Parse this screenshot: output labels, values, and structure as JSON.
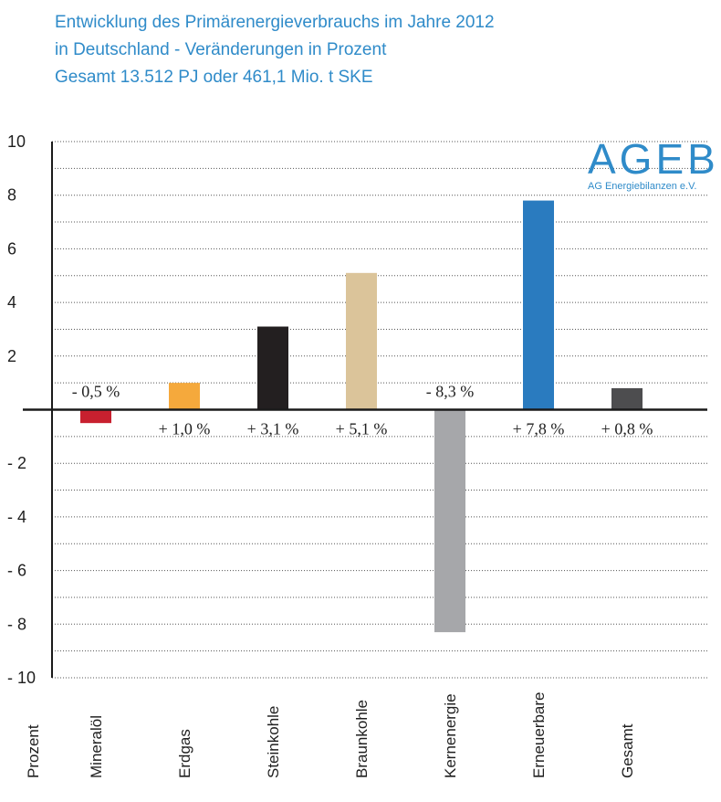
{
  "title_lines": [
    "Entwicklung des Primärenergieverbrauchs im Jahre 2012",
    "in Deutschland - Veränderungen in Prozent",
    "Gesamt 13.512 PJ oder 461,1 Mio. t SKE"
  ],
  "logo": {
    "main": "AGEB",
    "sub": "AG Energiebilanzen e.V."
  },
  "colors": {
    "title": "#2f8bc9",
    "axis": "#1a1a1a",
    "grid": "#555555"
  },
  "chart_data": {
    "type": "bar",
    "title": "Entwicklung des Primärenergieverbrauchs im Jahre 2012 in Deutschland - Veränderungen in Prozent",
    "subtitle": "Gesamt 13.512 PJ oder 461,1 Mio. t SKE",
    "ylabel": "Prozent",
    "xlabel": "",
    "ylim": [
      -10,
      10
    ],
    "grid": true,
    "y_ticks": [
      {
        "value": 10,
        "label": "10"
      },
      {
        "value": 8,
        "label": "8"
      },
      {
        "value": 6,
        "label": "6"
      },
      {
        "value": 4,
        "label": "4"
      },
      {
        "value": 2,
        "label": "2"
      },
      {
        "value": -2,
        "label": "- 2"
      },
      {
        "value": -4,
        "label": "- 4"
      },
      {
        "value": -6,
        "label": "- 6"
      },
      {
        "value": -8,
        "label": "- 8"
      },
      {
        "value": -10,
        "label": "- 10"
      }
    ],
    "categories": [
      "Mineralöl",
      "Erdgas",
      "Steinkohle",
      "Braunkohle",
      "Kernenergie",
      "Erneuerbare",
      "Gesamt"
    ],
    "values": [
      -0.5,
      1.0,
      3.1,
      5.1,
      -8.3,
      7.8,
      0.8
    ],
    "data_labels": [
      "- 0,5 %",
      "+ 1,0 %",
      "+ 3,1 %",
      "+ 5,1 %",
      "- 8,3 %",
      "+ 7,8 %",
      "+ 0,8 %"
    ],
    "bar_colors": [
      "#c8202f",
      "#f5a93c",
      "#231f20",
      "#dbc49a",
      "#a6a7aa",
      "#2a7bbf",
      "#4d4d4f"
    ]
  }
}
